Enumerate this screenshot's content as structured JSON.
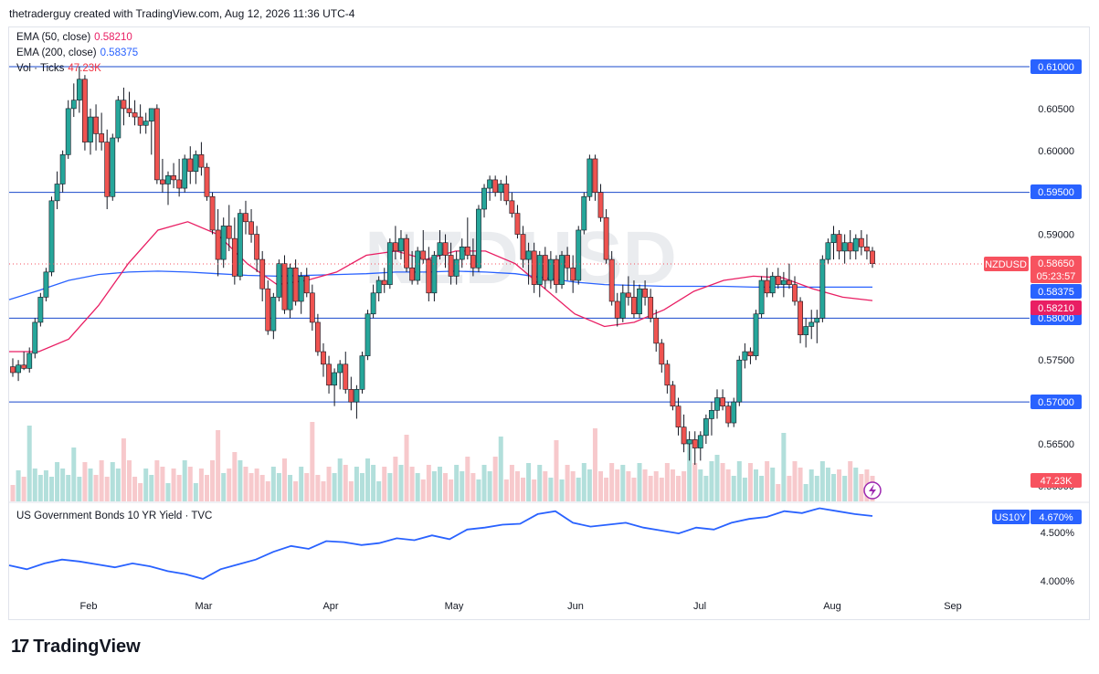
{
  "header": {
    "text": "thetraderguy created with TradingView.com, Aug 12, 2026 11:36 UTC-4"
  },
  "legend": {
    "ema50": {
      "label": "EMA (50, close)",
      "value": "0.58210",
      "color": "#e91e63"
    },
    "ema200": {
      "label": "EMA (200, close)",
      "value": "0.58375",
      "color": "#2962ff"
    },
    "vol": {
      "label": "Vol · Ticks",
      "value": "47.23K",
      "color": "#f23645"
    }
  },
  "watermark": "NZDUSD",
  "price_tags": {
    "symbol": "NZDUSD",
    "last": "0.58650",
    "countdown": "05:23:57",
    "ema200": "0.58375",
    "ema50": "0.58210",
    "volume": "47.23K"
  },
  "lower_pane": {
    "title": "US Government Bonds 10 YR Yield · TVC",
    "tag_symbol": "US10Y",
    "tag_value": "4.670%"
  },
  "footer": {
    "brand": "TradingView"
  },
  "chart_data": [
    {
      "type": "candlestick",
      "symbol": "NZDUSD",
      "timeframe": "daily",
      "x_labels": [
        "Feb",
        "Mar",
        "Apr",
        "May",
        "Jun",
        "Jul",
        "Aug",
        "Sep"
      ],
      "y_ticks": [
        "0.61000",
        "0.60500",
        "0.60000",
        "0.59500",
        "0.59000",
        "0.58500",
        "0.58000",
        "0.57500",
        "0.57000",
        "0.56500",
        "0.56000"
      ],
      "ylim": [
        0.5595,
        0.6125
      ],
      "horizontal_levels": [
        0.61,
        0.595,
        0.58,
        0.57
      ],
      "last_price": 0.5865,
      "ohlc_approx": [
        [
          0.5742,
          0.5752,
          0.573,
          0.5735
        ],
        [
          0.5735,
          0.575,
          0.5725,
          0.5744
        ],
        [
          0.5744,
          0.576,
          0.5738,
          0.574
        ],
        [
          0.574,
          0.5765,
          0.5735,
          0.5758
        ],
        [
          0.5758,
          0.58,
          0.5752,
          0.5795
        ],
        [
          0.5795,
          0.583,
          0.579,
          0.5825
        ],
        [
          0.5825,
          0.586,
          0.582,
          0.5855
        ],
        [
          0.5855,
          0.5945,
          0.585,
          0.594
        ],
        [
          0.594,
          0.5975,
          0.593,
          0.596
        ],
        [
          0.596,
          0.6,
          0.595,
          0.5995
        ],
        [
          0.5995,
          0.606,
          0.599,
          0.605
        ],
        [
          0.605,
          0.608,
          0.604,
          0.606
        ],
        [
          0.606,
          0.61,
          0.6045,
          0.6085
        ],
        [
          0.6085,
          0.609,
          0.6,
          0.601
        ],
        [
          0.601,
          0.605,
          0.5995,
          0.604
        ],
        [
          0.604,
          0.6055,
          0.6,
          0.602
        ],
        [
          0.602,
          0.6045,
          0.6,
          0.601
        ],
        [
          0.601,
          0.6025,
          0.593,
          0.5945
        ],
        [
          0.5945,
          0.602,
          0.594,
          0.6015
        ],
        [
          0.6015,
          0.6065,
          0.601,
          0.606
        ],
        [
          0.606,
          0.6075,
          0.603,
          0.605
        ],
        [
          0.605,
          0.607,
          0.604,
          0.6045
        ],
        [
          0.6045,
          0.606,
          0.603,
          0.604
        ],
        [
          0.604,
          0.6055,
          0.602,
          0.603
        ],
        [
          0.603,
          0.6045,
          0.602,
          0.6035
        ],
        [
          0.6035,
          0.605,
          0.5995,
          0.605
        ],
        [
          0.605,
          0.6055,
          0.596,
          0.5965
        ],
        [
          0.5965,
          0.599,
          0.595,
          0.596
        ],
        [
          0.596,
          0.5975,
          0.5935,
          0.597
        ],
        [
          0.597,
          0.5985,
          0.5955,
          0.5965
        ],
        [
          0.5965,
          0.599,
          0.5945,
          0.5955
        ],
        [
          0.5955,
          0.5995,
          0.595,
          0.599
        ],
        [
          0.599,
          0.6005,
          0.596,
          0.5975
        ],
        [
          0.5975,
          0.6,
          0.596,
          0.5995
        ],
        [
          0.5995,
          0.601,
          0.597,
          0.598
        ],
        [
          0.598,
          0.5985,
          0.594,
          0.5945
        ],
        [
          0.5945,
          0.595,
          0.59,
          0.5905
        ],
        [
          0.5905,
          0.593,
          0.585,
          0.587
        ],
        [
          0.587,
          0.592,
          0.586,
          0.591
        ],
        [
          0.591,
          0.5935,
          0.588,
          0.5895
        ],
        [
          0.5895,
          0.592,
          0.584,
          0.585
        ],
        [
          0.585,
          0.593,
          0.5845,
          0.5925
        ],
        [
          0.5925,
          0.594,
          0.59,
          0.5915
        ],
        [
          0.5915,
          0.593,
          0.589,
          0.59
        ],
        [
          0.59,
          0.591,
          0.5855,
          0.587
        ],
        [
          0.587,
          0.588,
          0.582,
          0.5835
        ],
        [
          0.5835,
          0.5845,
          0.578,
          0.5785
        ],
        [
          0.5785,
          0.583,
          0.5775,
          0.5825
        ],
        [
          0.5825,
          0.587,
          0.582,
          0.5865
        ],
        [
          0.5865,
          0.5875,
          0.5805,
          0.581
        ],
        [
          0.581,
          0.5865,
          0.58,
          0.586
        ],
        [
          0.586,
          0.587,
          0.5815,
          0.582
        ],
        [
          0.582,
          0.5855,
          0.5805,
          0.585
        ],
        [
          0.585,
          0.586,
          0.5825,
          0.583
        ],
        [
          0.583,
          0.584,
          0.5785,
          0.5795
        ],
        [
          0.5795,
          0.5805,
          0.5755,
          0.576
        ],
        [
          0.576,
          0.577,
          0.573,
          0.5745
        ],
        [
          0.5745,
          0.5755,
          0.571,
          0.572
        ],
        [
          0.572,
          0.574,
          0.5695,
          0.5735
        ],
        [
          0.5735,
          0.575,
          0.5715,
          0.5745
        ],
        [
          0.5745,
          0.576,
          0.571,
          0.5715
        ],
        [
          0.5715,
          0.573,
          0.569,
          0.57
        ],
        [
          0.57,
          0.572,
          0.568,
          0.5715
        ],
        [
          0.5715,
          0.576,
          0.571,
          0.5755
        ],
        [
          0.5755,
          0.581,
          0.575,
          0.5805
        ],
        [
          0.5805,
          0.584,
          0.58,
          0.583
        ],
        [
          0.583,
          0.585,
          0.582,
          0.5845
        ],
        [
          0.5845,
          0.586,
          0.583,
          0.584
        ],
        [
          0.584,
          0.5895,
          0.5835,
          0.589
        ],
        [
          0.589,
          0.591,
          0.587,
          0.588
        ],
        [
          0.588,
          0.5905,
          0.587,
          0.5895
        ],
        [
          0.5895,
          0.59,
          0.5855,
          0.586
        ],
        [
          0.586,
          0.588,
          0.584,
          0.5845
        ],
        [
          0.5845,
          0.5885,
          0.584,
          0.588
        ],
        [
          0.588,
          0.5905,
          0.5865,
          0.587
        ],
        [
          0.587,
          0.5885,
          0.582,
          0.583
        ],
        [
          0.583,
          0.588,
          0.582,
          0.5875
        ],
        [
          0.5875,
          0.5905,
          0.587,
          0.589
        ],
        [
          0.589,
          0.59,
          0.586,
          0.5875
        ],
        [
          0.5875,
          0.589,
          0.584,
          0.585
        ],
        [
          0.585,
          0.588,
          0.584,
          0.587
        ],
        [
          0.587,
          0.5895,
          0.586,
          0.5885
        ],
        [
          0.5885,
          0.592,
          0.587,
          0.5875
        ],
        [
          0.5875,
          0.5895,
          0.585,
          0.586
        ],
        [
          0.586,
          0.5935,
          0.5855,
          0.593
        ],
        [
          0.593,
          0.596,
          0.592,
          0.5955
        ],
        [
          0.5955,
          0.597,
          0.594,
          0.5965
        ],
        [
          0.5965,
          0.597,
          0.5945,
          0.595
        ],
        [
          0.595,
          0.5965,
          0.594,
          0.596
        ],
        [
          0.596,
          0.597,
          0.5935,
          0.594
        ],
        [
          0.594,
          0.595,
          0.592,
          0.5925
        ],
        [
          0.5925,
          0.5935,
          0.5895,
          0.59
        ],
        [
          0.59,
          0.591,
          0.586,
          0.587
        ],
        [
          0.587,
          0.589,
          0.584,
          0.588
        ],
        [
          0.588,
          0.589,
          0.583,
          0.584
        ],
        [
          0.584,
          0.588,
          0.5825,
          0.5875
        ],
        [
          0.5875,
          0.5885,
          0.5835,
          0.5845
        ],
        [
          0.5845,
          0.588,
          0.5835,
          0.587
        ],
        [
          0.587,
          0.5875,
          0.583,
          0.584
        ],
        [
          0.584,
          0.588,
          0.5835,
          0.5875
        ],
        [
          0.5875,
          0.5885,
          0.5845,
          0.586
        ],
        [
          0.586,
          0.5875,
          0.583,
          0.5845
        ],
        [
          0.5845,
          0.591,
          0.584,
          0.5905
        ],
        [
          0.5905,
          0.595,
          0.59,
          0.5945
        ],
        [
          0.5945,
          0.5995,
          0.594,
          0.599
        ],
        [
          0.599,
          0.5995,
          0.594,
          0.595
        ],
        [
          0.595,
          0.596,
          0.5915,
          0.592
        ],
        [
          0.592,
          0.593,
          0.5865,
          0.587
        ],
        [
          0.587,
          0.588,
          0.5815,
          0.582
        ],
        [
          0.582,
          0.583,
          0.579,
          0.58
        ],
        [
          0.58,
          0.584,
          0.5795,
          0.583
        ],
        [
          0.583,
          0.585,
          0.5815,
          0.5825
        ],
        [
          0.5825,
          0.5845,
          0.58,
          0.5805
        ],
        [
          0.5805,
          0.584,
          0.58,
          0.5835
        ],
        [
          0.5835,
          0.5845,
          0.5815,
          0.5825
        ],
        [
          0.5825,
          0.5835,
          0.5795,
          0.58
        ],
        [
          0.58,
          0.581,
          0.576,
          0.577
        ],
        [
          0.577,
          0.5775,
          0.5735,
          0.5745
        ],
        [
          0.5745,
          0.575,
          0.571,
          0.572
        ],
        [
          0.572,
          0.5725,
          0.569,
          0.5695
        ],
        [
          0.5695,
          0.5705,
          0.566,
          0.567
        ],
        [
          0.567,
          0.5685,
          0.564,
          0.565
        ],
        [
          0.565,
          0.5665,
          0.563,
          0.5655
        ],
        [
          0.5655,
          0.5665,
          0.5625,
          0.5645
        ],
        [
          0.5645,
          0.5665,
          0.563,
          0.566
        ],
        [
          0.566,
          0.5685,
          0.565,
          0.568
        ],
        [
          0.568,
          0.57,
          0.566,
          0.569
        ],
        [
          0.569,
          0.5715,
          0.568,
          0.5705
        ],
        [
          0.5705,
          0.5715,
          0.569,
          0.5695
        ],
        [
          0.5695,
          0.57,
          0.567,
          0.5675
        ],
        [
          0.5675,
          0.5705,
          0.567,
          0.57
        ],
        [
          0.57,
          0.5755,
          0.5695,
          0.575
        ],
        [
          0.575,
          0.577,
          0.574,
          0.576
        ],
        [
          0.576,
          0.5765,
          0.5745,
          0.5755
        ],
        [
          0.5755,
          0.581,
          0.575,
          0.5805
        ],
        [
          0.5805,
          0.585,
          0.58,
          0.5845
        ],
        [
          0.5845,
          0.586,
          0.5825,
          0.583
        ],
        [
          0.583,
          0.5855,
          0.5825,
          0.585
        ],
        [
          0.585,
          0.586,
          0.5835,
          0.584
        ],
        [
          0.584,
          0.5855,
          0.5825,
          0.5845
        ],
        [
          0.5845,
          0.5865,
          0.5835,
          0.584
        ],
        [
          0.584,
          0.585,
          0.5815,
          0.582
        ],
        [
          0.582,
          0.5825,
          0.577,
          0.578
        ],
        [
          0.578,
          0.58,
          0.5765,
          0.579
        ],
        [
          0.579,
          0.581,
          0.5775,
          0.5795
        ],
        [
          0.5795,
          0.581,
          0.577,
          0.58
        ],
        [
          0.58,
          0.5875,
          0.5795,
          0.587
        ],
        [
          0.587,
          0.5895,
          0.5865,
          0.589
        ],
        [
          0.589,
          0.591,
          0.587,
          0.59
        ],
        [
          0.59,
          0.5905,
          0.587,
          0.588
        ],
        [
          0.588,
          0.59,
          0.5865,
          0.589
        ],
        [
          0.589,
          0.5905,
          0.587,
          0.588
        ],
        [
          0.588,
          0.59,
          0.587,
          0.5895
        ],
        [
          0.5895,
          0.5905,
          0.5875,
          0.5885
        ],
        [
          0.5885,
          0.59,
          0.587,
          0.588
        ],
        [
          0.588,
          0.5885,
          0.586,
          0.5865
        ]
      ],
      "ema50": [
        0.576,
        0.576,
        0.5775,
        0.5815,
        0.5865,
        0.5905,
        0.5915,
        0.59,
        0.5865,
        0.584,
        0.5845,
        0.5855,
        0.5875,
        0.588,
        0.587,
        0.588,
        0.588,
        0.5865,
        0.5835,
        0.5805,
        0.579,
        0.5795,
        0.581,
        0.5832,
        0.5845,
        0.585,
        0.5848,
        0.5835,
        0.5825,
        0.5821
      ],
      "ema200": [
        0.5822,
        0.5833,
        0.5845,
        0.5852,
        0.5855,
        0.5856,
        0.5855,
        0.5853,
        0.5851,
        0.585,
        0.5851,
        0.5852,
        0.5853,
        0.5855,
        0.5855,
        0.5856,
        0.5855,
        0.5853,
        0.5848,
        0.5843,
        0.584,
        0.5839,
        0.5838,
        0.5838,
        0.5838,
        0.5837,
        0.5837,
        0.5837,
        0.5837,
        0.5837
      ]
    },
    {
      "type": "line",
      "symbol": "US10Y",
      "series": [
        {
          "name": "US Government Bonds 10 YR Yield",
          "values": [
            4.16,
            4.12,
            4.18,
            4.22,
            4.2,
            4.17,
            4.14,
            4.18,
            4.15,
            4.1,
            4.07,
            4.02,
            4.12,
            4.17,
            4.22,
            4.3,
            4.36,
            4.33,
            4.41,
            4.4,
            4.37,
            4.39,
            4.44,
            4.42,
            4.47,
            4.43,
            4.53,
            4.55,
            4.58,
            4.59,
            4.69,
            4.72,
            4.6,
            4.56,
            4.58,
            4.6,
            4.55,
            4.52,
            4.49,
            4.55,
            4.53,
            4.6,
            4.64,
            4.66,
            4.72,
            4.7,
            4.75,
            4.72,
            4.69,
            4.67
          ]
        }
      ],
      "y_ticks": [
        "4.500%",
        "4.000%"
      ],
      "ylim": [
        3.98,
        4.76
      ],
      "last": 4.67
    }
  ]
}
